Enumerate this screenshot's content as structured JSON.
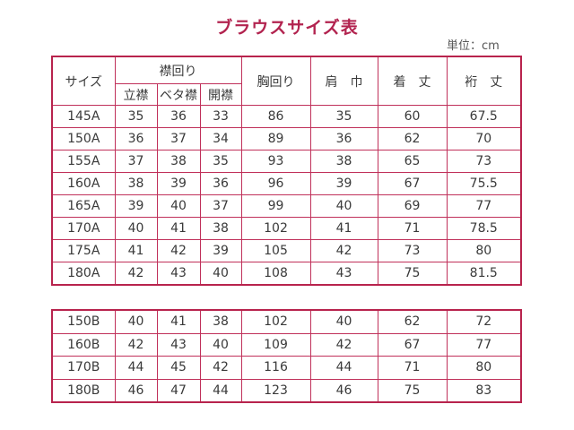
{
  "title": "ブラウスサイズ表",
  "unit": "単位：cm",
  "headers": {
    "size": "サイズ",
    "collar": "襟回り",
    "collar_sub": [
      "立襟",
      "ベタ襟",
      "開襟"
    ],
    "chest": "胸回り",
    "shoulder": "肩　巾",
    "length": "着　丈",
    "sleeve": "裄　丈"
  },
  "colors": {
    "border": "#b8234d",
    "title": "#b2234f"
  },
  "table_a": [
    [
      "145A",
      "35",
      "36",
      "33",
      "86",
      "35",
      "60",
      "67.5"
    ],
    [
      "150A",
      "36",
      "37",
      "34",
      "89",
      "36",
      "62",
      "70"
    ],
    [
      "155A",
      "37",
      "38",
      "35",
      "93",
      "38",
      "65",
      "73"
    ],
    [
      "160A",
      "38",
      "39",
      "36",
      "96",
      "39",
      "67",
      "75.5"
    ],
    [
      "165A",
      "39",
      "40",
      "37",
      "99",
      "40",
      "69",
      "77"
    ],
    [
      "170A",
      "40",
      "41",
      "38",
      "102",
      "41",
      "71",
      "78.5"
    ],
    [
      "175A",
      "41",
      "42",
      "39",
      "105",
      "42",
      "73",
      "80"
    ],
    [
      "180A",
      "42",
      "43",
      "40",
      "108",
      "43",
      "75",
      "81.5"
    ]
  ],
  "table_b": [
    [
      "150B",
      "40",
      "41",
      "38",
      "102",
      "40",
      "62",
      "72"
    ],
    [
      "160B",
      "42",
      "43",
      "40",
      "109",
      "42",
      "67",
      "77"
    ],
    [
      "170B",
      "44",
      "45",
      "42",
      "116",
      "44",
      "71",
      "80"
    ],
    [
      "180B",
      "46",
      "47",
      "44",
      "123",
      "46",
      "75",
      "83"
    ]
  ]
}
